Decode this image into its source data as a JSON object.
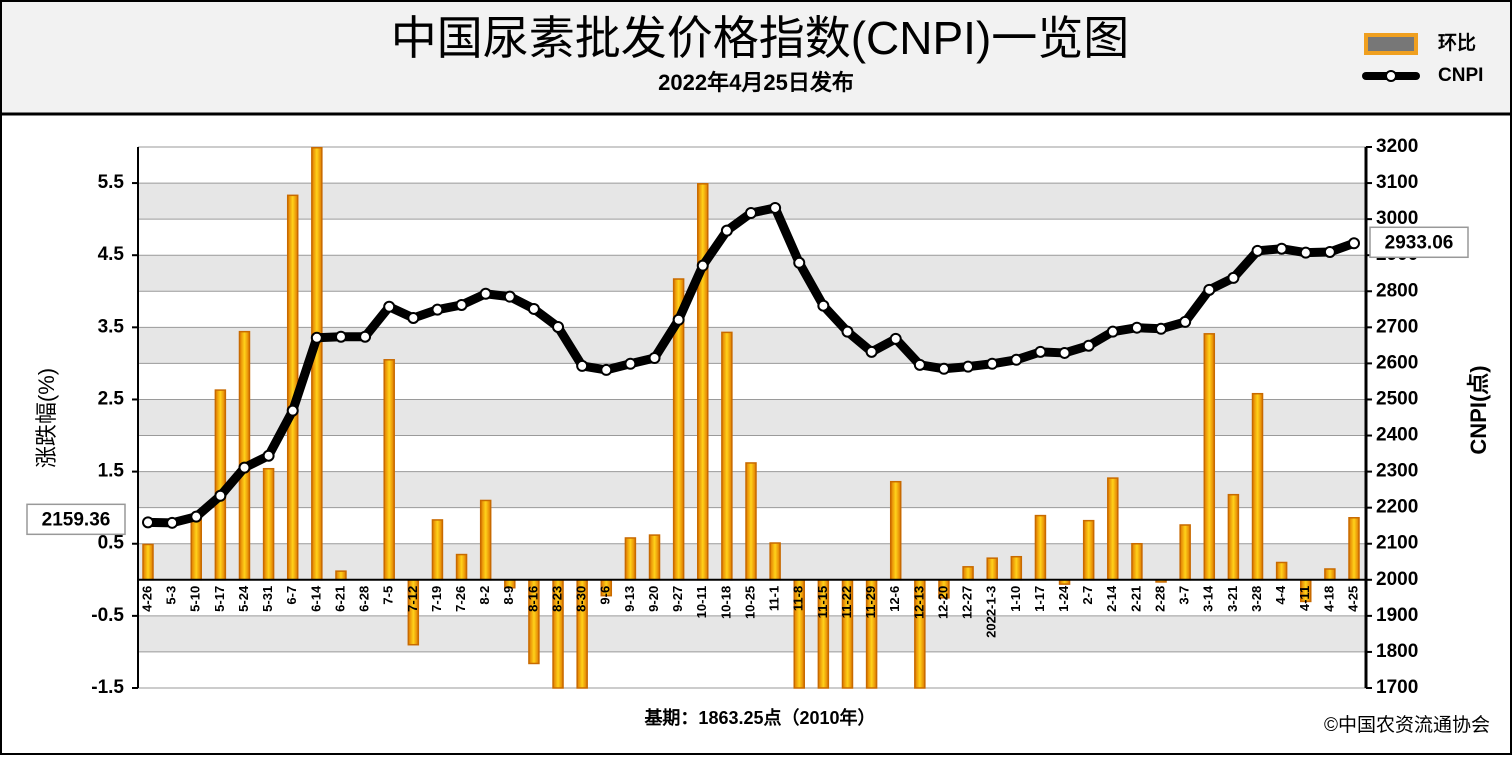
{
  "chart_data": {
    "type": "bar",
    "title": "中国尿素批发价格指数(CNPI)一览图",
    "subtitle": "2022年4月25日发布",
    "ylabel": "涨跌幅(%)",
    "y2label": "CNPI(点)",
    "footer": "基期：1863.25点（2010年）",
    "source": "©中国农资流通协会",
    "legend": "top-right",
    "grid": true,
    "categories": [
      "4-26",
      "5-3",
      "5-10",
      "5-17",
      "5-24",
      "5-31",
      "6-7",
      "6-14",
      "6-21",
      "6-28",
      "7-5",
      "7-12",
      "7-19",
      "7-26",
      "8-2",
      "8-9",
      "8-16",
      "8-23",
      "8-30",
      "9-6",
      "9-13",
      "9-20",
      "9-27",
      "10-11",
      "10-18",
      "10-25",
      "11-1",
      "11-8",
      "11-15",
      "11-22",
      "11-29",
      "12-6",
      "12-13",
      "12-20",
      "12-27",
      "2022-1-3",
      "1-10",
      "1-17",
      "1-24",
      "2-7",
      "2-14",
      "2-21",
      "2-28",
      "3-7",
      "3-14",
      "3-21",
      "3-28",
      "4-4",
      "4-11",
      "4-18",
      "4-25"
    ],
    "series": [
      {
        "name": "环比",
        "type": "bar",
        "color": "#f0a020",
        "values": [
          0.49,
          0,
          0.83,
          2.63,
          3.44,
          1.54,
          5.33,
          5.99,
          0.12,
          0,
          3.05,
          -0.9,
          0.83,
          0.35,
          1.1,
          -0.11,
          -1.16,
          -1.5,
          -1.5,
          -0.22,
          0.58,
          0.62,
          4.17,
          5.49,
          3.43,
          1.62,
          0.51,
          -1.5,
          -1.5,
          -1.5,
          -1.5,
          1.36,
          -1.5,
          -0.25,
          0.18,
          0.3,
          0.32,
          0.89,
          -0.06,
          0.82,
          1.41,
          0.5,
          -0.03,
          0.76,
          3.41,
          1.18,
          2.58,
          0.24,
          -0.3,
          0.15,
          0.86
        ]
      },
      {
        "name": "CNPI",
        "type": "line",
        "axis": "y2",
        "color": "#000000",
        "values": [
          2159.36,
          2158,
          2175,
          2233,
          2311,
          2344,
          2469,
          2671,
          2674,
          2674,
          2757,
          2726,
          2749,
          2762,
          2793,
          2785,
          2751,
          2701,
          2593,
          2582,
          2599,
          2615,
          2721,
          2871,
          2968,
          3017,
          3031,
          2879,
          2760,
          2688,
          2632,
          2668,
          2596,
          2585,
          2591,
          2599,
          2610,
          2632,
          2629,
          2649,
          2688,
          2699,
          2696,
          2715,
          2804,
          2837,
          2912,
          2918,
          2907,
          2909,
          2933.06
        ]
      }
    ],
    "ylim": [
      -1.5,
      6
    ],
    "yticks": [
      -1.5,
      -0.5,
      0.5,
      1.5,
      2.5,
      3.5,
      4.5,
      5.5
    ],
    "y2lim": [
      1700,
      3200
    ],
    "y2ticks": [
      1700,
      1800,
      1900,
      2000,
      2100,
      2200,
      2300,
      2400,
      2500,
      2600,
      2700,
      2800,
      2900,
      3000,
      3100,
      3200
    ]
  }
}
